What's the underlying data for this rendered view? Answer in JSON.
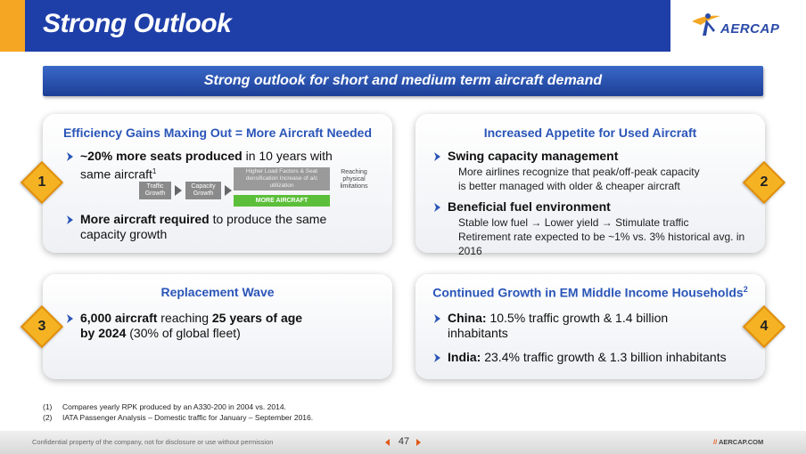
{
  "header": {
    "title": "Strong Outlook",
    "logo_text": "AERCAP",
    "brand_color": "#1f3fa8",
    "accent_color": "#f5a623"
  },
  "banner": {
    "text": "Strong outlook for short and medium term aircraft demand"
  },
  "cards": [
    {
      "number": "1",
      "title": "Efficiency Gains Maxing Out = More Aircraft Needed",
      "bullets": [
        {
          "bold": "~20% more seats produced",
          "rest": " in 10 years with",
          "line2": "same aircraft",
          "sup": "1"
        },
        {
          "bold": "More aircraft required",
          "rest": " to produce the same",
          "line2": "capacity growth"
        }
      ],
      "diagram": {
        "box1": "Traffic Growth",
        "box2": "Capacity Growth",
        "box3": "Higher Load Factors & Seat densification Increase of a/c utilization",
        "green": "MORE AIRCRAFT",
        "note": "Reaching physical limitations"
      }
    },
    {
      "number": "2",
      "title": "Increased Appetite for Used Aircraft",
      "bullets": [
        {
          "bold": "Swing capacity management",
          "sub1": "More airlines recognize that peak/off-peak capacity",
          "sub2": "is better managed with older & cheaper aircraft"
        },
        {
          "bold": "Beneficial fuel environment",
          "sub1": "Stable low fuel → Lower yield → Stimulate traffic",
          "sub2": "Retirement rate expected to be ~1% vs. 3% historical avg. in 2016"
        }
      ]
    },
    {
      "number": "3",
      "title": "Replacement Wave",
      "bullets": [
        {
          "bold": "6,000 aircraft",
          "rest": " reaching ",
          "bold2": "25 years of age",
          "line2_bold": "by 2024",
          "line2": " (30% of global fleet)"
        }
      ]
    },
    {
      "number": "4",
      "title": "Continued Growth in EM Middle Income Households",
      "title_sup": "2",
      "bullets": [
        {
          "bold": "China:",
          "rest": " 10.5% traffic growth & 1.4 billion",
          "line2": "inhabitants"
        },
        {
          "bold": "India:",
          "rest": " 23.4% traffic growth & 1.3 billion inhabitants"
        }
      ]
    }
  ],
  "footnotes": [
    {
      "num": "(1)",
      "text": "Compares yearly RPK produced by an A330-200 in 2004 vs. 2014."
    },
    {
      "num": "(2)",
      "text": "IATA Passenger Analysis – Domestic traffic for January – September 2016."
    }
  ],
  "footer": {
    "confidential": "Confidential property of the company, not for disclosure or use without permission",
    "page": "47",
    "site_prefix": "//",
    "site": " AERCAP.COM"
  }
}
